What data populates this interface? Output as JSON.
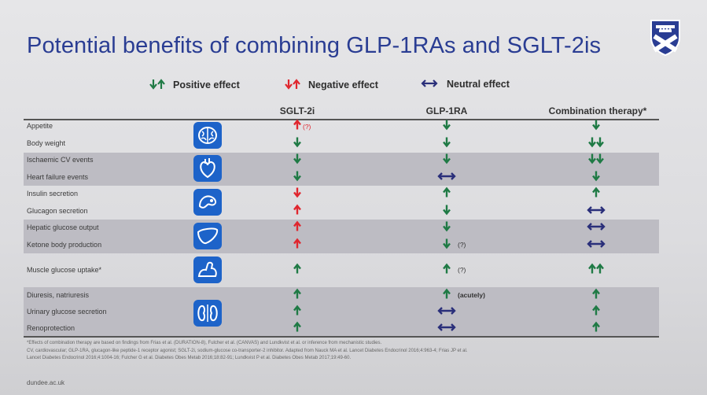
{
  "title": "Potential benefits of combining GLP-1RAs and SGLT-2is",
  "legend": {
    "positive": "Positive effect",
    "negative": "Negative effect",
    "neutral": "Neutral effect"
  },
  "colors": {
    "title": "#2a3d93",
    "positive": "#1f7a45",
    "negative": "#e0262e",
    "neutral": "#2a2f7a",
    "icon_bg": "#1d63c9"
  },
  "columns": [
    "SGLT-2i",
    "GLP-1RA",
    "Combination therapy*"
  ],
  "rows": [
    {
      "label": "Appetite",
      "sglt": "up-red",
      "sglt_note": "(?)",
      "glp": "down",
      "combo": "down"
    },
    {
      "label": "Body weight",
      "sglt": "down",
      "glp": "down",
      "combo": "down2"
    },
    {
      "label": "Ischaemic CV events",
      "sglt": "down",
      "glp": "down",
      "combo": "down2"
    },
    {
      "label": "Heart failure events",
      "sglt": "down",
      "glp": "neutral",
      "combo": "down"
    },
    {
      "label": "Insulin secretion",
      "sglt": "down-red",
      "glp": "up",
      "combo": "up"
    },
    {
      "label": "Glucagon secretion",
      "sglt": "up-red",
      "glp": "down",
      "combo": "neutral"
    },
    {
      "label": "Hepatic glucose output",
      "sglt": "up-red",
      "glp": "down",
      "combo": "neutral"
    },
    {
      "label": "Ketone body production",
      "sglt": "up-red",
      "glp": "down",
      "glp_note": "(?)",
      "combo": "neutral"
    },
    {
      "label": "Muscle glucose uptake*",
      "sglt": "up",
      "glp": "up",
      "glp_note": "(?)",
      "combo": "up2"
    },
    {
      "label": "Diuresis, natriuresis",
      "sglt": "up",
      "glp": "up",
      "glp_note": "(acutely)",
      "combo": "up"
    },
    {
      "label": "Urinary glucose secretion",
      "sglt": "up",
      "glp": "neutral",
      "combo": "up"
    },
    {
      "label": "Renoprotection",
      "sglt": "up",
      "glp": "neutral",
      "combo": "up"
    }
  ],
  "icons": [
    "brain-icon",
    "heart-icon",
    "pancreas-icon",
    "liver-icon",
    "muscle-icon",
    "kidney-icon"
  ],
  "footnotes": [
    "*Effects of combination therapy are based on findings from Frias et al. (DURATION-8), Fulcher et al. (CANVAS) and Lundkvist et al. or inference from mechanistic studies.",
    "CV, cardiovascular; GLP-1RA, glucagon-like peptide-1 receptor agonist; SGLT-2i, sodium-glucose co-transporter-2 inhibitor. Adapted from Nauck MA et al. Lancet Diabetes Endocrinol 2016;4:963-4; Frias JP et al.",
    "Lancet Diabetes Endocrinol 2016;4:1004-16; Fulcher G et al. Diabetes Obes Metab 2016;18:82-91; Lundkvist P et al. Diabetes Obes Metab 2017;19:49-60."
  ],
  "website": "dundee.ac.uk"
}
